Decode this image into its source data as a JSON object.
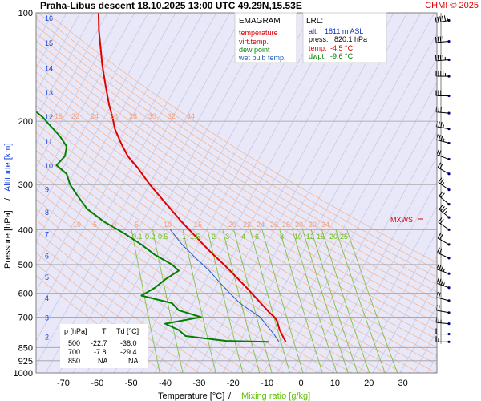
{
  "header": {
    "title": "Praha-Libus   descent   18.10.2025 13:00 UTC  49.29N,15.53E",
    "copyright": "CHMI © 2025"
  },
  "chart_data": {
    "type": "line",
    "chart_kind": "EMAGRAM",
    "xlabel": "Temperature [°C]",
    "xlabel_separator": "/",
    "xlabel2": "Mixing ratio [g/kg]",
    "ylabel": "Pressure [hPa]",
    "ylabel_separator": "/",
    "ylabel2": "Altitude [km]",
    "x_ticks": [
      -70,
      -60,
      -50,
      -40,
      -30,
      -20,
      -10,
      0,
      10,
      20,
      30
    ],
    "xlim": [
      -78,
      40
    ],
    "ylim": [
      1000,
      100
    ],
    "y_scale": "log",
    "p_ticks": [
      100,
      200,
      300,
      400,
      500,
      600,
      700,
      850,
      925,
      1000
    ],
    "alt_ticks_km": [
      2,
      3,
      4,
      5,
      6,
      7,
      8,
      9,
      10,
      11,
      12,
      13,
      14,
      15,
      16
    ],
    "grid": true,
    "legend_position": "top-center",
    "legend": {
      "title": "EMAGRAM",
      "items": [
        {
          "name": "temperature",
          "color": "#e00000"
        },
        {
          "name": "virt.temp.",
          "color": "#e00000"
        },
        {
          "name": "dew point",
          "color": "#008000"
        },
        {
          "name": "wet bulb temp.",
          "color": "#2060c0"
        }
      ]
    },
    "lrl_box": {
      "title": "LRL:",
      "lines": [
        {
          "label": "alt:",
          "value": "1811 m ASL",
          "color": "#1030c0"
        },
        {
          "label": "press:",
          "value": "820.1 hPa",
          "color": "#000000"
        },
        {
          "label": "temp:",
          "value": "-4.5 °C",
          "color": "#e00000"
        },
        {
          "label": "dwpt:",
          "value": "-9.6 °C",
          "color": "#008000"
        }
      ]
    },
    "table": {
      "headers": [
        "p [hPa]",
        "T",
        "Td [°C]"
      ],
      "rows": [
        [
          "500",
          "-22.7",
          "-38.0"
        ],
        [
          "700",
          "-7.8",
          "-29.4"
        ],
        [
          "850",
          "NA",
          "NA"
        ]
      ]
    },
    "dry_adiabat_labels_upper": [
      "-15",
      "20",
      "24",
      "26",
      "28",
      "30",
      "32",
      "34"
    ],
    "dry_adiabat_labels_lower": [
      "-10",
      "-5",
      "0",
      "5",
      "10",
      "15",
      "20",
      "22",
      "24",
      "26",
      "28",
      "30",
      "32",
      "34"
    ],
    "mixing_ratio_labels": [
      "0.1",
      "0.2",
      "0.5",
      "1",
      "1.5",
      "2",
      "3",
      "4",
      "6",
      "8",
      "10",
      "12",
      "15",
      "20",
      "25"
    ],
    "mixing_ratio_values": [
      0.1,
      0.2,
      0.5,
      1,
      1.5,
      2,
      3,
      4,
      6,
      8,
      10,
      12,
      15,
      20,
      25
    ],
    "mxws_label": "MXWS",
    "series": [
      {
        "name": "temperature",
        "color": "#e00000",
        "points": [
          {
            "p": 820,
            "t": -4.5
          },
          {
            "p": 790,
            "t": -5.4
          },
          {
            "p": 760,
            "t": -6.3
          },
          {
            "p": 720,
            "t": -7.0
          },
          {
            "p": 700,
            "t": -7.8
          },
          {
            "p": 680,
            "t": -9.3
          },
          {
            "p": 650,
            "t": -11.2
          },
          {
            "p": 620,
            "t": -13.2
          },
          {
            "p": 580,
            "t": -16.0
          },
          {
            "p": 540,
            "t": -19.2
          },
          {
            "p": 500,
            "t": -22.7
          },
          {
            "p": 460,
            "t": -26.8
          },
          {
            "p": 420,
            "t": -30.8
          },
          {
            "p": 380,
            "t": -35.2
          },
          {
            "p": 340,
            "t": -39.6
          },
          {
            "p": 300,
            "t": -44.5
          },
          {
            "p": 270,
            "t": -48.0
          },
          {
            "p": 250,
            "t": -51.0
          },
          {
            "p": 230,
            "t": -53.0
          },
          {
            "p": 210,
            "t": -54.8
          },
          {
            "p": 195,
            "t": -55.5
          },
          {
            "p": 180,
            "t": -56.5
          },
          {
            "p": 160,
            "t": -57.5
          },
          {
            "p": 140,
            "t": -58.5
          },
          {
            "p": 125,
            "t": -59.0
          },
          {
            "p": 112,
            "t": -59.5
          },
          {
            "p": 100,
            "t": -59.6
          }
        ]
      },
      {
        "name": "dew point",
        "color": "#008000",
        "points": [
          {
            "p": 820,
            "t": -9.6
          },
          {
            "p": 815,
            "t": -22.0
          },
          {
            "p": 790,
            "t": -34.0
          },
          {
            "p": 760,
            "t": -36.0
          },
          {
            "p": 730,
            "t": -40.0
          },
          {
            "p": 700,
            "t": -29.4
          },
          {
            "p": 670,
            "t": -36.0
          },
          {
            "p": 640,
            "t": -38.0
          },
          {
            "p": 610,
            "t": -47.0
          },
          {
            "p": 580,
            "t": -43.0
          },
          {
            "p": 550,
            "t": -40.0
          },
          {
            "p": 520,
            "t": -36.0
          },
          {
            "p": 500,
            "t": -38.0
          },
          {
            "p": 470,
            "t": -43.0
          },
          {
            "p": 440,
            "t": -47.0
          },
          {
            "p": 410,
            "t": -52.0
          },
          {
            "p": 380,
            "t": -58.0
          },
          {
            "p": 350,
            "t": -63.0
          },
          {
            "p": 320,
            "t": -66.0
          },
          {
            "p": 300,
            "t": -68.0
          },
          {
            "p": 280,
            "t": -69.0
          },
          {
            "p": 265,
            "t": -72.0
          },
          {
            "p": 250,
            "t": -69.5
          },
          {
            "p": 235,
            "t": -69.0
          },
          {
            "p": 220,
            "t": -71.0
          },
          {
            "p": 205,
            "t": -74.0
          },
          {
            "p": 195,
            "t": -76.0
          },
          {
            "p": 185,
            "t": -79.0
          }
        ]
      },
      {
        "name": "wet bulb temp.",
        "color": "#2060c0",
        "points": [
          {
            "p": 820,
            "t": -6.5
          },
          {
            "p": 780,
            "t": -8.0
          },
          {
            "p": 740,
            "t": -10.0
          },
          {
            "p": 700,
            "t": -12.0
          },
          {
            "p": 670,
            "t": -15.0
          },
          {
            "p": 640,
            "t": -18.0
          },
          {
            "p": 600,
            "t": -21.0
          },
          {
            "p": 560,
            "t": -24.0
          },
          {
            "p": 520,
            "t": -27.0
          },
          {
            "p": 480,
            "t": -31.0
          },
          {
            "p": 440,
            "t": -35.0
          },
          {
            "p": 400,
            "t": -38.5
          }
        ]
      }
    ],
    "wind_barbs": [
      {
        "p": 105,
        "dir": 260,
        "spd_kt": 45
      },
      {
        "p": 120,
        "dir": 265,
        "spd_kt": 40
      },
      {
        "p": 135,
        "dir": 265,
        "spd_kt": 35
      },
      {
        "p": 150,
        "dir": 270,
        "spd_kt": 35
      },
      {
        "p": 170,
        "dir": 270,
        "spd_kt": 30
      },
      {
        "p": 190,
        "dir": 275,
        "spd_kt": 30
      },
      {
        "p": 210,
        "dir": 280,
        "spd_kt": 25
      },
      {
        "p": 230,
        "dir": 285,
        "spd_kt": 25
      },
      {
        "p": 255,
        "dir": 290,
        "spd_kt": 20
      },
      {
        "p": 280,
        "dir": 300,
        "spd_kt": 20
      },
      {
        "p": 310,
        "dir": 305,
        "spd_kt": 15
      },
      {
        "p": 340,
        "dir": 310,
        "spd_kt": 20
      },
      {
        "p": 370,
        "dir": 310,
        "spd_kt": 25
      },
      {
        "p": 400,
        "dir": 305,
        "spd_kt": 20
      },
      {
        "p": 440,
        "dir": 300,
        "spd_kt": 20
      },
      {
        "p": 480,
        "dir": 295,
        "spd_kt": 20
      },
      {
        "p": 530,
        "dir": 290,
        "spd_kt": 25
      },
      {
        "p": 580,
        "dir": 290,
        "spd_kt": 25
      },
      {
        "p": 630,
        "dir": 285,
        "spd_kt": 20
      },
      {
        "p": 680,
        "dir": 280,
        "spd_kt": 20
      },
      {
        "p": 730,
        "dir": 275,
        "spd_kt": 15
      },
      {
        "p": 780,
        "dir": 270,
        "spd_kt": 10
      },
      {
        "p": 820,
        "dir": 270,
        "spd_kt": 5
      }
    ]
  }
}
